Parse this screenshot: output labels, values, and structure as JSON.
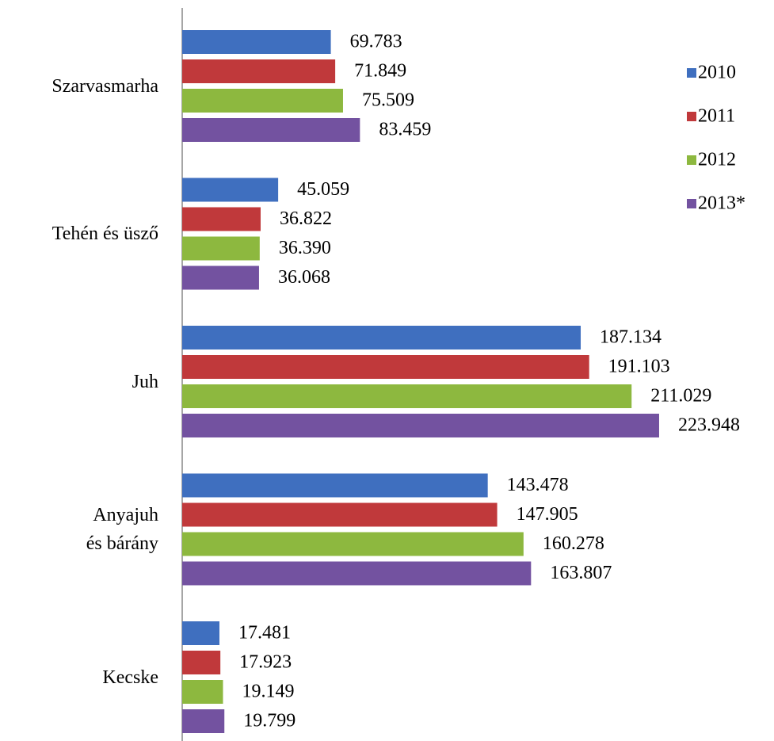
{
  "chart_data": {
    "type": "bar",
    "orientation": "horizontal",
    "categories": [
      "Szarvasmarha",
      "Tehén és üsző",
      "Juh",
      "Anyajuh\nés bárány",
      "Kecske"
    ],
    "series": [
      {
        "name": "2010",
        "color": "#3f6fbf",
        "values": [
          69.783,
          45.059,
          187.134,
          143.478,
          17.481
        ],
        "value_labels": [
          "69.783",
          "45.059",
          "187.134",
          "143.478",
          "17.481"
        ]
      },
      {
        "name": "2011",
        "color": "#c0393b",
        "values": [
          71.849,
          36.822,
          191.103,
          147.905,
          17.923
        ],
        "value_labels": [
          "71.849",
          "36.822",
          "191.103",
          "147.905",
          "17.923"
        ]
      },
      {
        "name": "2012",
        "color": "#8db83f",
        "values": [
          75.509,
          36.39,
          211.029,
          160.278,
          19.149
        ],
        "value_labels": [
          "75.509",
          "36.390",
          "211.029",
          "160.278",
          "19.149"
        ]
      },
      {
        "name": "2013*",
        "color": "#7352a0",
        "values": [
          83.459,
          36.068,
          223.948,
          163.807,
          19.799
        ],
        "value_labels": [
          "83.459",
          "36.068",
          "223.948",
          "163.807",
          "19.799"
        ]
      }
    ],
    "xlim": [
      0,
      250
    ],
    "legend": "right"
  }
}
